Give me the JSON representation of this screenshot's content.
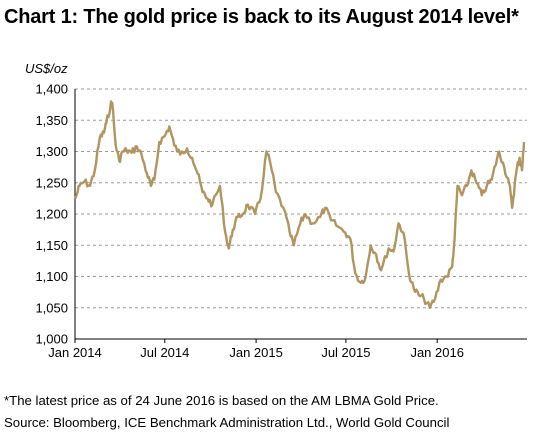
{
  "title": "Chart 1: The gold price is back to its August 2014 level*",
  "unit_label": "US$/oz",
  "footnote": "*The latest price as of 24 June 2016 is based on the AM LBMA Gold Price.",
  "source": "Source: Bloomberg, ICE Benchmark Administration Ltd., World Gold Council",
  "colors": {
    "line": "#b0955f",
    "grid": "#9a9a9a",
    "axis": "#000000"
  },
  "chart_data": {
    "type": "line",
    "title": "Chart 1: The gold price is back to its August 2014 level*",
    "xlabel": "",
    "ylabel": "US$/oz",
    "ylim": [
      1000,
      1400
    ],
    "xlim": [
      "2014-01-01",
      "2016-06-30"
    ],
    "grid": "horizontal dashed",
    "y_ticks": [
      "1,000",
      "1,050",
      "1,100",
      "1,150",
      "1,200",
      "1,250",
      "1,300",
      "1,350",
      "1,400"
    ],
    "x_ticks": [
      {
        "label": "Jan 2014",
        "date": "2014-01-01"
      },
      {
        "label": "Jul 2014",
        "date": "2014-07-01"
      },
      {
        "label": "Jan 2015",
        "date": "2015-01-01"
      },
      {
        "label": "Jul 2015",
        "date": "2015-07-01"
      },
      {
        "label": "Jan 2016",
        "date": "2016-01-01"
      }
    ],
    "series": [
      {
        "points": [
          [
            "2014-01-02",
            1225
          ],
          [
            "2014-01-10",
            1245
          ],
          [
            "2014-01-20",
            1252
          ],
          [
            "2014-01-31",
            1245
          ],
          [
            "2014-02-10",
            1270
          ],
          [
            "2014-02-20",
            1322
          ],
          [
            "2014-02-28",
            1330
          ],
          [
            "2014-03-05",
            1345
          ],
          [
            "2014-03-14",
            1375
          ],
          [
            "2014-03-17",
            1378
          ],
          [
            "2014-03-24",
            1310
          ],
          [
            "2014-03-31",
            1285
          ],
          [
            "2014-04-07",
            1300
          ],
          [
            "2014-04-15",
            1302
          ],
          [
            "2014-04-25",
            1298
          ],
          [
            "2014-05-06",
            1308
          ],
          [
            "2014-05-15",
            1295
          ],
          [
            "2014-05-26",
            1265
          ],
          [
            "2014-06-03",
            1245
          ],
          [
            "2014-06-10",
            1255
          ],
          [
            "2014-06-20",
            1315
          ],
          [
            "2014-07-01",
            1325
          ],
          [
            "2014-07-10",
            1340
          ],
          [
            "2014-07-20",
            1310
          ],
          [
            "2014-08-01",
            1295
          ],
          [
            "2014-08-15",
            1305
          ],
          [
            "2014-08-25",
            1290
          ],
          [
            "2014-09-05",
            1265
          ],
          [
            "2014-09-15",
            1235
          ],
          [
            "2014-09-25",
            1225
          ],
          [
            "2014-10-05",
            1215
          ],
          [
            "2014-10-20",
            1245
          ],
          [
            "2014-10-31",
            1170
          ],
          [
            "2014-11-07",
            1145
          ],
          [
            "2014-11-15",
            1175
          ],
          [
            "2014-11-25",
            1195
          ],
          [
            "2014-12-05",
            1200
          ],
          [
            "2014-12-15",
            1215
          ],
          [
            "2014-12-30",
            1200
          ],
          [
            "2015-01-10",
            1225
          ],
          [
            "2015-01-22",
            1300
          ],
          [
            "2015-01-30",
            1280
          ],
          [
            "2015-02-10",
            1235
          ],
          [
            "2015-02-25",
            1210
          ],
          [
            "2015-03-10",
            1170
          ],
          [
            "2015-03-18",
            1150
          ],
          [
            "2015-03-31",
            1185
          ],
          [
            "2015-04-10",
            1200
          ],
          [
            "2015-04-25",
            1185
          ],
          [
            "2015-05-10",
            1195
          ],
          [
            "2015-05-20",
            1210
          ],
          [
            "2015-06-01",
            1190
          ],
          [
            "2015-06-15",
            1180
          ],
          [
            "2015-06-30",
            1170
          ],
          [
            "2015-07-10",
            1160
          ],
          [
            "2015-07-20",
            1105
          ],
          [
            "2015-07-31",
            1090
          ],
          [
            "2015-08-10",
            1100
          ],
          [
            "2015-08-20",
            1150
          ],
          [
            "2015-08-31",
            1135
          ],
          [
            "2015-09-10",
            1110
          ],
          [
            "2015-09-25",
            1145
          ],
          [
            "2015-10-05",
            1140
          ],
          [
            "2015-10-15",
            1185
          ],
          [
            "2015-10-25",
            1170
          ],
          [
            "2015-11-05",
            1105
          ],
          [
            "2015-11-15",
            1080
          ],
          [
            "2015-11-25",
            1070
          ],
          [
            "2015-12-05",
            1065
          ],
          [
            "2015-12-17",
            1050
          ],
          [
            "2015-12-28",
            1065
          ],
          [
            "2016-01-08",
            1095
          ],
          [
            "2016-01-20",
            1100
          ],
          [
            "2016-01-31",
            1115
          ],
          [
            "2016-02-05",
            1160
          ],
          [
            "2016-02-11",
            1245
          ],
          [
            "2016-02-20",
            1230
          ],
          [
            "2016-03-01",
            1245
          ],
          [
            "2016-03-10",
            1270
          ],
          [
            "2016-03-20",
            1250
          ],
          [
            "2016-03-31",
            1230
          ],
          [
            "2016-04-10",
            1245
          ],
          [
            "2016-04-20",
            1255
          ],
          [
            "2016-05-01",
            1290
          ],
          [
            "2016-05-05",
            1300
          ],
          [
            "2016-05-15",
            1275
          ],
          [
            "2016-05-25",
            1250
          ],
          [
            "2016-05-31",
            1210
          ],
          [
            "2016-06-05",
            1245
          ],
          [
            "2016-06-10",
            1275
          ],
          [
            "2016-06-15",
            1290
          ],
          [
            "2016-06-20",
            1270
          ],
          [
            "2016-06-24",
            1315
          ]
        ]
      }
    ]
  }
}
